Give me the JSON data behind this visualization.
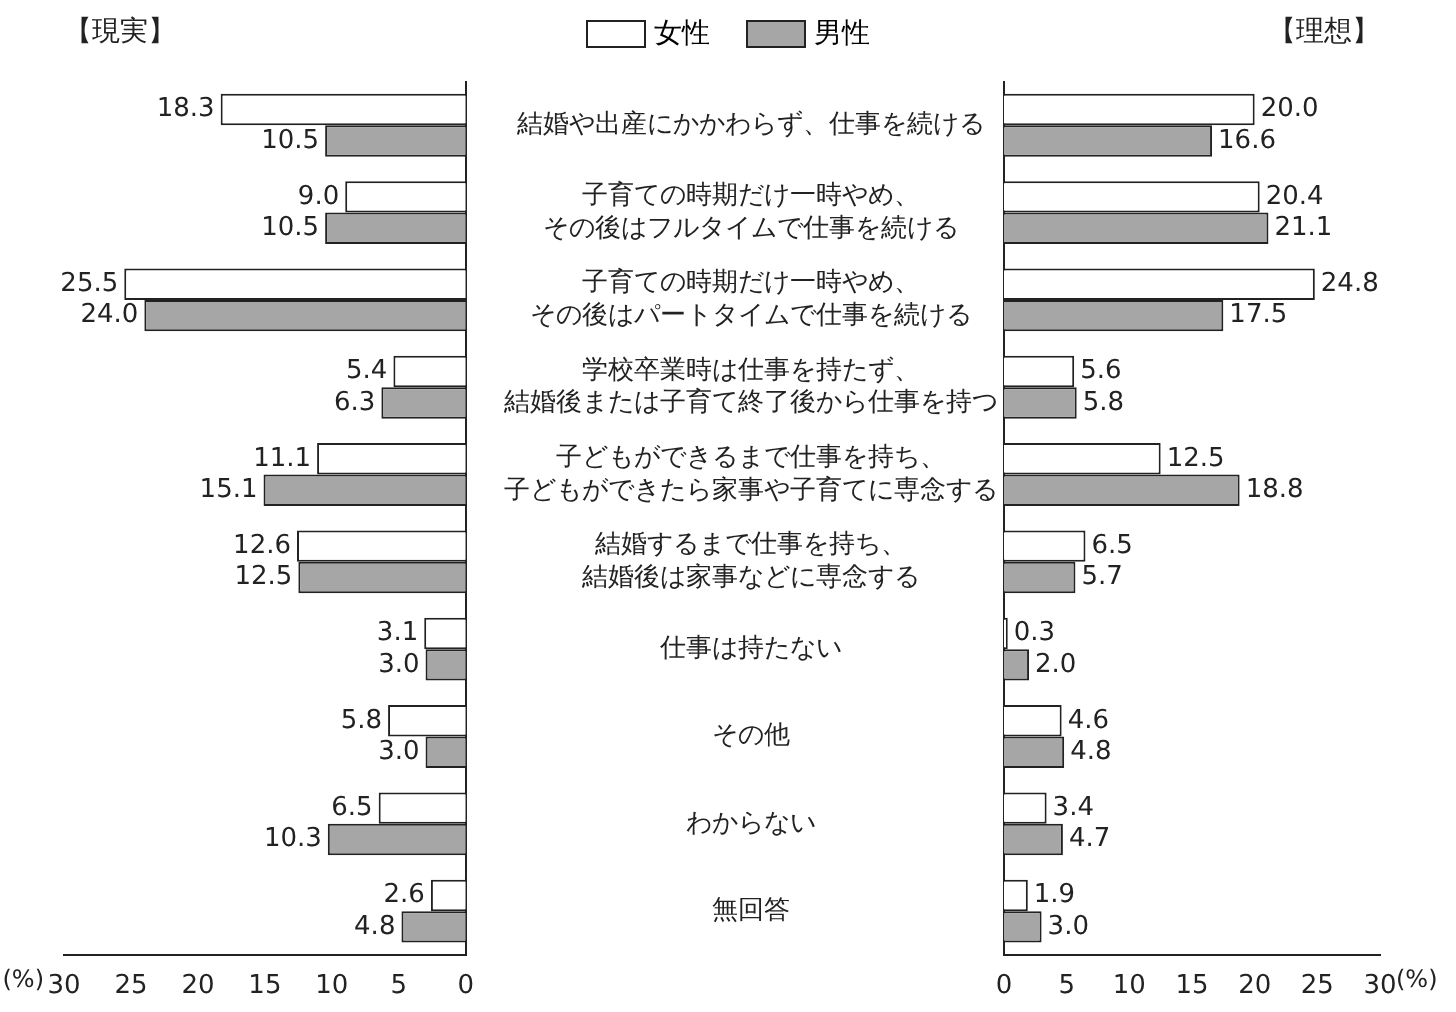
{
  "chart_data": [
    {
      "type": "bar",
      "orientation": "horizontal",
      "title": "【現実】",
      "xlabel": "(%)",
      "legend": "top",
      "tick_labels": "x",
      "categories": [
        null,
        null,
        null,
        null,
        null,
        null,
        null,
        null,
        null,
        null
      ],
      "series": [
        {
          "name": "女性",
          "color": "#ffffff",
          "values": [
            18.3,
            9.0,
            25.5,
            5.4,
            11.1,
            12.6,
            3.1,
            5.8,
            6.5,
            2.6
          ],
          "value_labels": [
            "18.3",
            "9.0",
            "25.5",
            "5.4",
            "11.1",
            "12.6",
            "3.1",
            "5.8",
            "6.5",
            "2.6"
          ]
        },
        {
          "name": "男性",
          "color": "#a6a6a6",
          "values": [
            10.5,
            10.5,
            24.0,
            6.3,
            15.1,
            12.5,
            3.0,
            3.0,
            10.3,
            4.8
          ],
          "value_labels": [
            "10.5",
            "10.5",
            "24.0",
            "6.3",
            "15.1",
            "12.5",
            "3.0",
            "3.0",
            "10.3",
            "4.8"
          ]
        }
      ],
      "xlim": [
        30,
        0
      ],
      "xticks": [
        30,
        25,
        20,
        15,
        10,
        5,
        0
      ]
    },
    {
      "type": "bar",
      "orientation": "horizontal",
      "title": "【理想】",
      "xlabel": "(%)",
      "categories": [
        "結婚や出産にかかわらず、仕事を続ける",
        "子育ての時期だけ一時やめ、その後はフルタイムで仕事を続ける",
        "子育ての時期だけ一時やめ、その後はパートタイムで仕事を続ける",
        "学校卒業時は仕事を持たず、結婚後または子育て終了後から仕事を持つ",
        "子どもができるまで仕事を持ち、子どもができたら家事や子育てに専念する",
        "結婚するまで仕事を持ち、結婚後は家事などに専念する",
        "仕事は持たない",
        "その他",
        "わからない",
        "無回答"
      ],
      "series": [
        {
          "color": "#ffffff",
          "values": [
            20.0,
            20.4,
            24.8,
            5.6,
            12.5,
            6.5,
            0.3,
            4.6,
            3.4,
            1.9
          ],
          "value_labels": [
            "20.0",
            "20.4",
            "24.8",
            "5.6",
            "12.5",
            "6.5",
            "0.3",
            "4.6",
            "3.4",
            "1.9"
          ]
        },
        {
          "color": "#a6a6a6",
          "values": [
            16.6,
            21.1,
            17.5,
            5.8,
            18.8,
            5.7,
            2.0,
            4.8,
            4.7,
            3.0
          ],
          "value_labels": [
            "16.6",
            "21.1",
            "17.5",
            "5.8",
            "18.8",
            "5.7",
            "2.0",
            "4.8",
            "4.7",
            "3.0"
          ]
        }
      ],
      "xlim": [
        0,
        30
      ],
      "xticks": [
        0,
        5,
        10,
        15,
        20,
        25,
        30
      ]
    }
  ]
}
